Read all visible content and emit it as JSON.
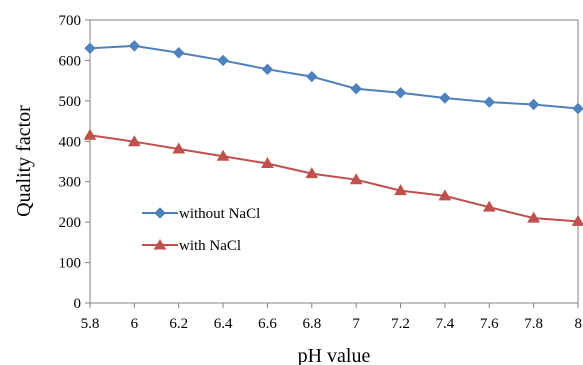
{
  "chart_data": {
    "type": "line",
    "xlabel": "pH value",
    "ylabel": "Quality factor",
    "xlim": [
      5.8,
      8
    ],
    "ylim": [
      0,
      700
    ],
    "x_ticks": [
      "5.8",
      "6",
      "6.2",
      "6.4",
      "6.6",
      "6.8",
      "7",
      "7.2",
      "7.4",
      "7.6",
      "7.8",
      "8"
    ],
    "y_ticks": [
      "0",
      "100",
      "200",
      "300",
      "400",
      "500",
      "600",
      "700"
    ],
    "x": [
      5.8,
      6.0,
      6.2,
      6.4,
      6.6,
      6.8,
      7.0,
      7.2,
      7.4,
      7.6,
      7.8,
      8.0
    ],
    "series": [
      {
        "name": "without NaCl",
        "color": "#4F81BD",
        "marker": "diamond",
        "values": [
          630,
          636,
          619,
          600,
          578,
          560,
          530,
          520,
          507,
          497,
          491,
          481
        ]
      },
      {
        "name": "with NaCl",
        "color": "#C0504D",
        "marker": "triangle",
        "values": [
          415,
          399,
          381,
          363,
          345,
          320,
          305,
          278,
          265,
          237,
          210,
          202
        ]
      }
    ],
    "grid": false,
    "legend_position": "center-left"
  }
}
